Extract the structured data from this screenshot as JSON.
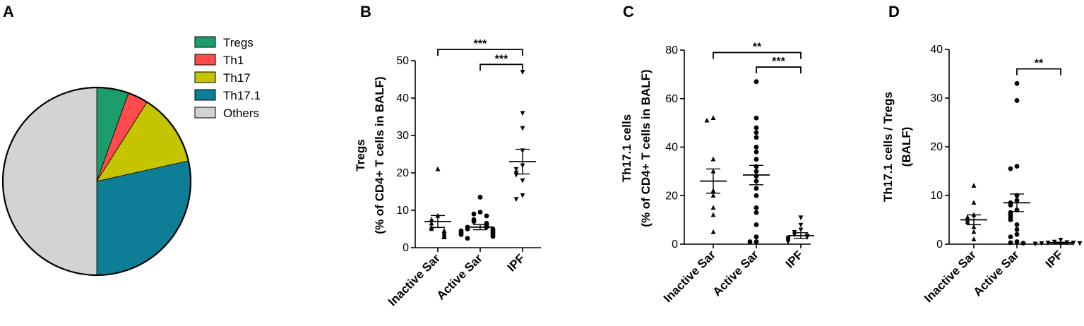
{
  "chart_data": [
    {
      "panel": "A",
      "type": "pie",
      "legend_position": "right",
      "slices": [
        {
          "label": "Tregs",
          "value": 5.5,
          "color": "#1b9e6c"
        },
        {
          "label": "Th1",
          "value": 3.5,
          "color": "#ff4b4b"
        },
        {
          "label": "Th17",
          "value": 12.5,
          "color": "#c4c400"
        },
        {
          "label": "Th17.1",
          "value": 28.5,
          "color": "#0e7e96"
        },
        {
          "label": "Others",
          "value": 50.0,
          "color": "#d3d3d3"
        }
      ]
    },
    {
      "panel": "B",
      "type": "scatter",
      "ylabel_lines": [
        "Tregs",
        "(% of CD4+ T cells in BALF)"
      ],
      "ylim": [
        0,
        50
      ],
      "yticks": [
        0,
        10,
        20,
        30,
        40,
        50
      ],
      "categories": [
        "Inactive Sar",
        "Active Sar",
        "IPF"
      ],
      "markers": [
        "triangle-up",
        "circle",
        "triangle-down"
      ],
      "points": [
        [
          21,
          8.5,
          7.5,
          6.5,
          5.5,
          5,
          4.5,
          4,
          3.5,
          3,
          2.8
        ],
        [
          13.5,
          9.5,
          9,
          8.5,
          7.5,
          7,
          6.5,
          6,
          5.5,
          5.5,
          5,
          5,
          4.5,
          4.5,
          4,
          4,
          3.5,
          3.5,
          3,
          2.5
        ],
        [
          47,
          36,
          32,
          26,
          22,
          21,
          20,
          19.5,
          18,
          14,
          13
        ]
      ],
      "mean": [
        7,
        5.5,
        23
      ],
      "sem": [
        1.6,
        0.7,
        3.3
      ],
      "significance": [
        {
          "from": 0,
          "to": 2,
          "label": "***",
          "y": 53
        },
        {
          "from": 1,
          "to": 2,
          "label": "***",
          "y": 49
        }
      ]
    },
    {
      "panel": "C",
      "type": "scatter",
      "ylabel_lines": [
        "Th17.1 cells",
        "(% of CD4+ T cells in BALF)"
      ],
      "ylim": [
        0,
        80
      ],
      "yticks": [
        0,
        20,
        40,
        60,
        80
      ],
      "categories": [
        "Inactive Sar",
        "Active Sar",
        "IPF"
      ],
      "markers": [
        "triangle-up",
        "circle",
        "triangle-down"
      ],
      "points": [
        [
          52,
          51,
          35,
          30,
          22,
          20,
          15,
          12,
          5
        ],
        [
          67,
          52,
          48,
          46,
          44,
          40,
          38,
          35,
          32,
          30,
          28,
          26,
          23,
          20,
          15,
          13,
          8,
          3,
          1,
          1
        ],
        [
          11,
          8,
          6,
          5,
          4,
          3.5,
          3,
          2.5,
          2,
          1.5,
          1
        ]
      ],
      "mean": [
        26,
        28.5,
        3.5
      ],
      "sem": [
        5,
        4,
        1.2
      ],
      "significance": [
        {
          "from": 0,
          "to": 2,
          "label": "**",
          "y": 79
        },
        {
          "from": 1,
          "to": 2,
          "label": "***",
          "y": 73
        }
      ]
    },
    {
      "panel": "D",
      "type": "scatter",
      "ylabel_lines": [
        "Th17.1 cells / Tregs",
        "(BALF)"
      ],
      "ylim": [
        0,
        40
      ],
      "yticks": [
        0,
        10,
        20,
        30,
        40
      ],
      "categories": [
        "Inactive Sar",
        "Active Sar",
        "IPF"
      ],
      "markers": [
        "triangle-up",
        "circle",
        "triangle-down"
      ],
      "points": [
        [
          12,
          8.5,
          6,
          5.5,
          5,
          4.5,
          3.5,
          2.5,
          1
        ],
        [
          33,
          29.5,
          16,
          15.5,
          10,
          9,
          8.5,
          8,
          7,
          6.5,
          6,
          5.5,
          5,
          4,
          3,
          2,
          1.5,
          0.5,
          0.3,
          0.2
        ],
        [
          0.9,
          0.5,
          0.4,
          0.3,
          0.3,
          0.2,
          0.2,
          0.1,
          0.1,
          0.1
        ]
      ],
      "mean": [
        5,
        8.5,
        0.3
      ],
      "sem": [
        1,
        1.8,
        0.1
      ],
      "significance": [
        {
          "from": 1,
          "to": 2,
          "label": "**",
          "y": 36
        }
      ]
    }
  ]
}
